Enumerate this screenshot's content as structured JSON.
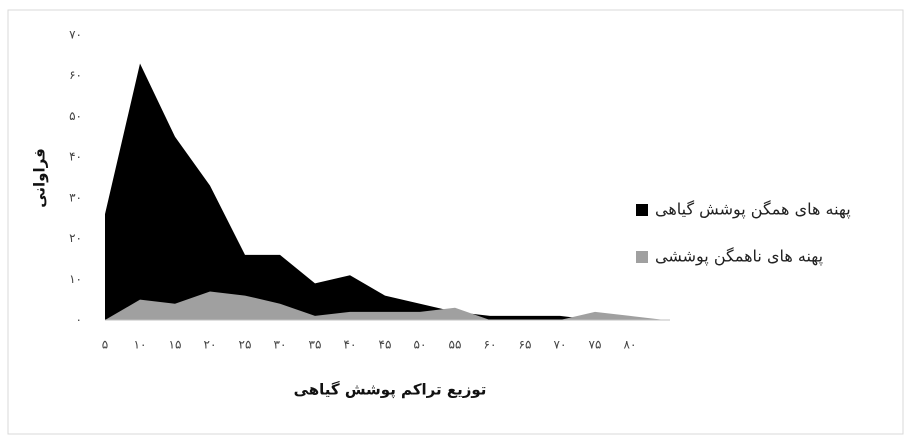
{
  "chart_data": {
    "type": "area",
    "x_label": "توزیع تراکم پوشش گیاهی",
    "y_label": "فراوانی",
    "categories": [
      "۵",
      "۱۰",
      "۱۵",
      "۲۰",
      "۲۵",
      "۳۰",
      "۳۵",
      "۴۰",
      "۴۵",
      "۵۰",
      "۵۵",
      "۶۰",
      "۶۵",
      "۷۰",
      "۷۵",
      "۸۰",
      null
    ],
    "series": [
      {
        "name": "پهنه های همگن پوشش گیاهی",
        "color": "#000000",
        "values": [
          26,
          63,
          45,
          33,
          16,
          16,
          9,
          11,
          6,
          4,
          2,
          1,
          1,
          1,
          0,
          0,
          0
        ]
      },
      {
        "name": "پهنه های ناهمگن پوششی",
        "color": "#a0a0a0",
        "values": [
          0,
          5,
          4,
          7,
          6,
          4,
          1,
          2,
          2,
          2,
          3,
          0,
          0,
          0,
          2,
          1,
          0
        ]
      }
    ],
    "ylim": [
      0,
      70
    ],
    "yticks": [
      {
        "value": 0,
        "label": "۰"
      },
      {
        "value": 10,
        "label": "۱۰"
      },
      {
        "value": 20,
        "label": "۲۰"
      },
      {
        "value": 30,
        "label": "۳۰"
      },
      {
        "value": 40,
        "label": "۴۰"
      },
      {
        "value": 50,
        "label": "۵۰"
      },
      {
        "value": 60,
        "label": "۶۰"
      },
      {
        "value": 70,
        "label": "۷۰"
      }
    ],
    "grid": false,
    "legend": "right"
  }
}
